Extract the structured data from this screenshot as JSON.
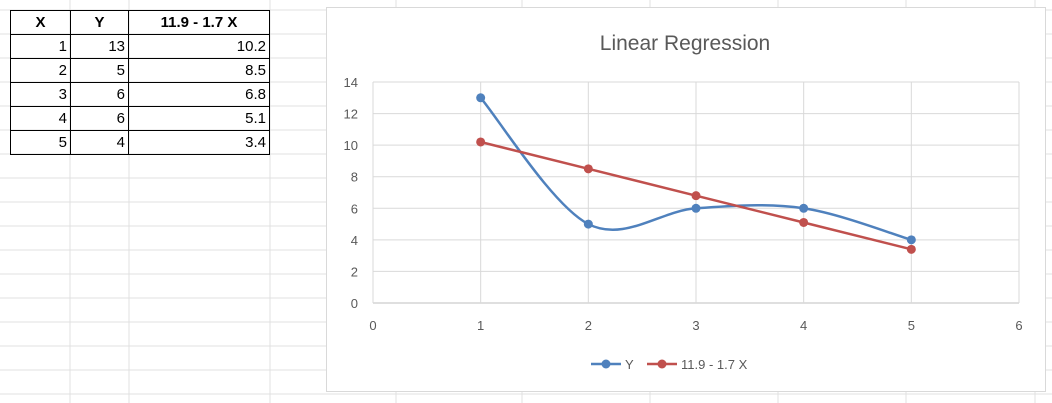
{
  "table": {
    "headers": [
      "X",
      "Y",
      "11.9 - 1.7 X"
    ],
    "rows": [
      [
        "1",
        "13",
        "10.2"
      ],
      [
        "2",
        "5",
        "8.5"
      ],
      [
        "3",
        "6",
        "6.8"
      ],
      [
        "4",
        "6",
        "5.1"
      ],
      [
        "5",
        "4",
        "3.4"
      ]
    ]
  },
  "chart_data": {
    "type": "line",
    "title": "Linear Regression",
    "xlabel": "",
    "ylabel": "",
    "xlim": [
      0,
      6
    ],
    "ylim": [
      0,
      14
    ],
    "xticks": [
      0,
      1,
      2,
      3,
      4,
      5,
      6
    ],
    "yticks": [
      0,
      2,
      4,
      6,
      8,
      10,
      12,
      14
    ],
    "grid": true,
    "legend_position": "bottom",
    "series": [
      {
        "name": "Y",
        "x": [
          1,
          2,
          3,
          4,
          5
        ],
        "y": [
          13,
          5,
          6,
          6,
          4
        ],
        "color": "#4f81bd",
        "smooth": true
      },
      {
        "name": "11.9 - 1.7 X",
        "x": [
          1,
          2,
          3,
          4,
          5
        ],
        "y": [
          10.2,
          8.5,
          6.8,
          5.1,
          3.4
        ],
        "color": "#c0504d",
        "smooth": false
      }
    ]
  }
}
